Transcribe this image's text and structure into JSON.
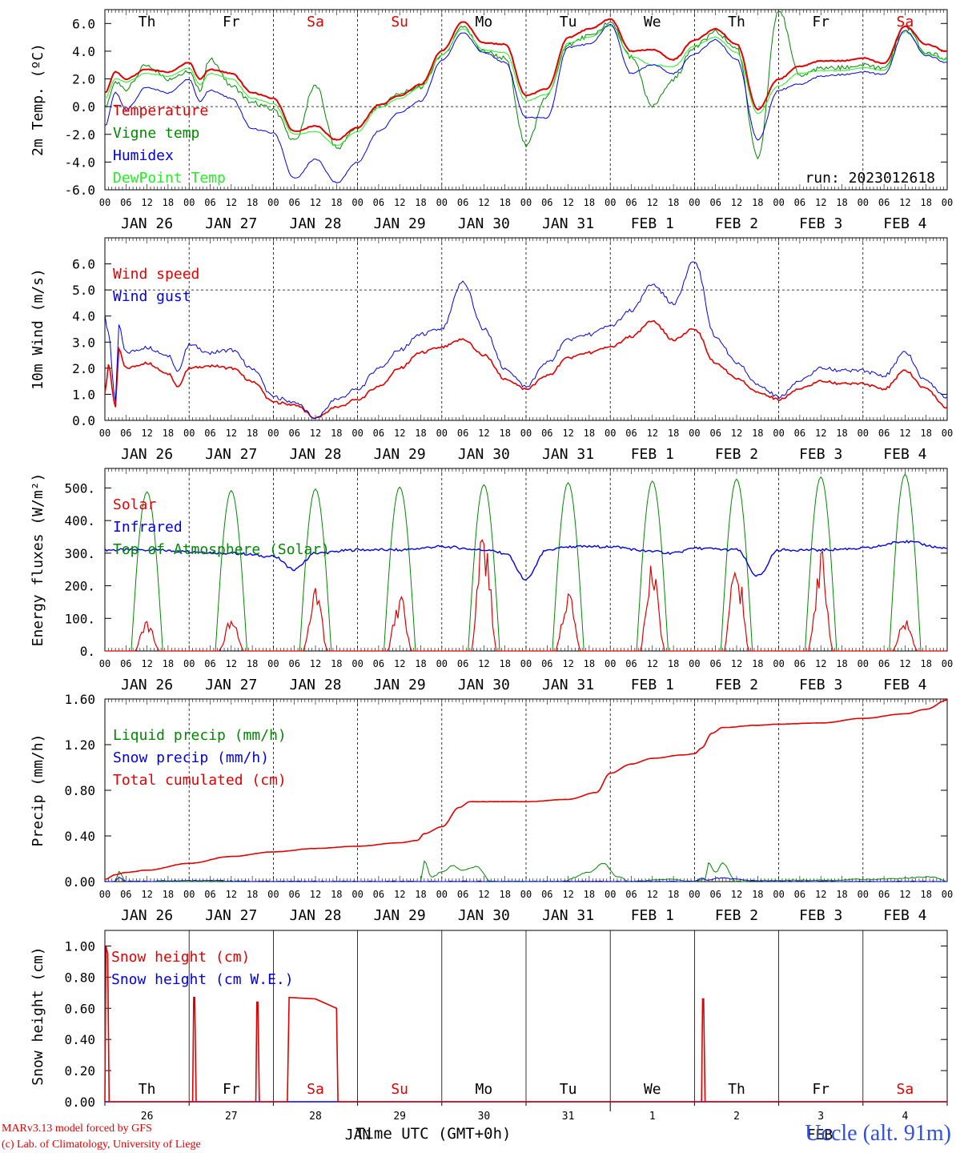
{
  "colors": {
    "red": "#e00000",
    "green": "#008800",
    "blue": "#0000e0",
    "lime": "#22ee22",
    "station": "#3050e0",
    "weekend": "#e00000"
  },
  "weekdays": [
    {
      "label": "Th",
      "weekend": false
    },
    {
      "label": "Fr",
      "weekend": false
    },
    {
      "label": "Sa",
      "weekend": true
    },
    {
      "label": "Su",
      "weekend": true
    },
    {
      "label": "Mo",
      "weekend": false
    },
    {
      "label": "Tu",
      "weekend": false
    },
    {
      "label": "We",
      "weekend": false
    },
    {
      "label": "Th",
      "weekend": false
    },
    {
      "label": "Fr",
      "weekend": false
    },
    {
      "label": "Sa",
      "weekend": true
    }
  ],
  "hour_ticks": [
    "00",
    "06",
    "12",
    "18"
  ],
  "dates": [
    "JAN 26",
    "JAN 27",
    "JAN 28",
    "JAN 29",
    "JAN 30",
    "JAN 31",
    "FEB  1",
    "FEB  2",
    "FEB  3",
    "FEB  4"
  ],
  "bottom_days": [
    "26",
    "27",
    "28",
    "29",
    "30",
    "31",
    "1",
    "2",
    "3",
    "4"
  ],
  "bottom_months": [
    "JAN",
    "FEB"
  ],
  "run_label": "run: 2023012618",
  "x_title": "Time UTC (GMT+0h)",
  "credits": [
    "MARv3.13 model forced by GFS",
    "(c) Lab. of Climatology, University of Liege"
  ],
  "station": "Uccle (alt. 91m)",
  "chart_data": [
    {
      "type": "line",
      "ylabel": "2m Temp. (ºC)",
      "ylim": [
        -6.0,
        7.0
      ],
      "yticks": [
        "-6.0",
        "-4.0",
        "-2.0",
        "0.0",
        "2.0",
        "4.0",
        "6.0"
      ],
      "ref_lines": [
        0.0
      ],
      "x_unit": "hours since JAN 26 00 UTC",
      "series": [
        {
          "name": "Temperature",
          "color": "red",
          "x": [
            0,
            3,
            6,
            12,
            18,
            24,
            27,
            30,
            36,
            42,
            48,
            54,
            60,
            66,
            72,
            78,
            84,
            90,
            96,
            102,
            108,
            114,
            120,
            126,
            132,
            138,
            144,
            150,
            156,
            162,
            168,
            174,
            180,
            186,
            192,
            198,
            204,
            210,
            216,
            222,
            228,
            234,
            240
          ],
          "values": [
            1.0,
            2.5,
            2.0,
            2.7,
            2.5,
            3.2,
            2.0,
            2.7,
            2.4,
            1.0,
            0.6,
            -1.8,
            -1.4,
            -2.4,
            -1.5,
            0.1,
            0.8,
            1.6,
            4.0,
            6.1,
            4.6,
            4.5,
            0.8,
            1.3,
            5.0,
            5.6,
            6.3,
            4.0,
            4.1,
            3.4,
            4.8,
            5.6,
            4.5,
            -0.2,
            2.0,
            2.9,
            3.3,
            3.3,
            3.5,
            3.1,
            5.8,
            4.5,
            4.0
          ]
        },
        {
          "name": "Vigne temp",
          "color": "green",
          "x": [
            0,
            3,
            6,
            12,
            18,
            24,
            27,
            30,
            36,
            42,
            48,
            54,
            60,
            66,
            72,
            78,
            84,
            90,
            96,
            102,
            108,
            114,
            120,
            126,
            132,
            138,
            144,
            150,
            156,
            162,
            168,
            174,
            180,
            186,
            192,
            198,
            204,
            210,
            216,
            222,
            228,
            234,
            240
          ],
          "values": [
            0.0,
            1.7,
            1.3,
            3.0,
            2.0,
            2.6,
            1.2,
            3.5,
            1.5,
            0.3,
            -0.2,
            -2.5,
            1.5,
            -3.0,
            -1.5,
            0.0,
            1.0,
            1.4,
            3.6,
            5.7,
            4.0,
            3.5,
            -2.8,
            0.8,
            4.5,
            5.1,
            6.0,
            3.6,
            0.0,
            2.0,
            4.3,
            5.4,
            4.2,
            -3.7,
            7.0,
            2.2,
            2.8,
            2.8,
            3.0,
            2.7,
            5.8,
            3.9,
            3.5
          ]
        },
        {
          "name": "Humidex",
          "color": "blue",
          "x": [
            0,
            3,
            6,
            12,
            18,
            24,
            27,
            30,
            36,
            42,
            48,
            54,
            60,
            66,
            72,
            78,
            84,
            90,
            96,
            102,
            108,
            114,
            120,
            126,
            132,
            138,
            144,
            150,
            156,
            162,
            168,
            174,
            180,
            186,
            192,
            198,
            204,
            210,
            216,
            222,
            228,
            234,
            240
          ],
          "values": [
            -1.4,
            1.0,
            -0.2,
            1.4,
            1.0,
            2.0,
            0.4,
            1.2,
            0.6,
            -1.6,
            -1.9,
            -5.2,
            -3.8,
            -5.5,
            -4.0,
            -1.8,
            -0.4,
            0.4,
            3.3,
            5.3,
            3.9,
            3.2,
            -0.8,
            -0.8,
            4.3,
            4.5,
            5.9,
            2.4,
            3.0,
            2.4,
            3.8,
            4.8,
            3.4,
            -2.4,
            1.2,
            1.6,
            2.2,
            2.3,
            2.5,
            2.3,
            5.5,
            3.7,
            3.2
          ]
        },
        {
          "name": "DewPoint Temp",
          "color": "lime",
          "x": [
            0,
            3,
            6,
            12,
            18,
            24,
            27,
            30,
            36,
            42,
            48,
            54,
            60,
            66,
            72,
            78,
            84,
            90,
            96,
            102,
            108,
            114,
            120,
            126,
            132,
            138,
            144,
            150,
            156,
            162,
            168,
            174,
            180,
            186,
            192,
            198,
            204,
            210,
            216,
            222,
            228,
            234,
            240
          ],
          "values": [
            0.6,
            2.0,
            1.8,
            2.4,
            2.2,
            2.8,
            1.6,
            2.4,
            2.0,
            0.6,
            0.2,
            -2.0,
            -1.8,
            -2.8,
            -1.8,
            -0.1,
            0.6,
            1.4,
            3.7,
            5.6,
            4.1,
            3.9,
            0.4,
            0.9,
            4.6,
            5.0,
            5.8,
            3.6,
            3.0,
            2.9,
            4.4,
            5.0,
            3.9,
            -0.5,
            1.5,
            2.4,
            2.6,
            2.6,
            2.8,
            2.6,
            5.4,
            3.8,
            3.4
          ]
        }
      ]
    },
    {
      "type": "line",
      "ylabel": "10m Wind (m/s)",
      "ylim": [
        0.0,
        7.0
      ],
      "yticks": [
        "0.0",
        "1.0",
        "2.0",
        "3.0",
        "4.0",
        "5.0",
        "6.0"
      ],
      "ref_lines": [
        5.0
      ],
      "x_unit": "hours since JAN 26 00 UTC",
      "series": [
        {
          "name": "Wind speed",
          "color": "red",
          "x": [
            0,
            1,
            3,
            4,
            6,
            12,
            18,
            21,
            24,
            30,
            36,
            42,
            48,
            54,
            60,
            66,
            72,
            78,
            84,
            90,
            96,
            102,
            108,
            114,
            120,
            126,
            132,
            138,
            144,
            150,
            156,
            162,
            168,
            174,
            180,
            186,
            192,
            198,
            204,
            210,
            216,
            222,
            228,
            234,
            240
          ],
          "values": [
            1.0,
            2.1,
            0.5,
            2.7,
            2.0,
            2.2,
            1.8,
            1.3,
            2.0,
            2.1,
            2.0,
            1.5,
            0.7,
            0.6,
            0.1,
            0.5,
            0.8,
            1.3,
            2.0,
            2.6,
            2.8,
            3.1,
            2.5,
            1.6,
            1.2,
            1.7,
            2.4,
            2.6,
            2.8,
            3.2,
            3.8,
            3.1,
            3.5,
            2.2,
            1.6,
            1.1,
            0.8,
            1.2,
            1.5,
            1.4,
            1.4,
            1.2,
            1.9,
            1.2,
            0.5
          ]
        },
        {
          "name": "Wind gust",
          "color": "blue",
          "x": [
            0,
            1,
            3,
            4,
            6,
            12,
            18,
            21,
            24,
            30,
            36,
            42,
            48,
            54,
            60,
            66,
            72,
            78,
            84,
            90,
            96,
            102,
            108,
            114,
            120,
            126,
            132,
            138,
            144,
            150,
            156,
            162,
            168,
            174,
            180,
            186,
            192,
            198,
            204,
            210,
            216,
            222,
            228,
            234,
            240
          ],
          "values": [
            4.0,
            3.3,
            0.7,
            3.6,
            2.6,
            2.8,
            2.5,
            1.9,
            2.9,
            2.6,
            2.7,
            2.0,
            0.9,
            0.7,
            0.1,
            0.8,
            1.2,
            2.0,
            2.7,
            3.3,
            3.5,
            5.3,
            3.5,
            2.0,
            1.3,
            2.2,
            3.1,
            3.3,
            3.6,
            4.2,
            5.2,
            4.5,
            6.1,
            3.2,
            2.2,
            1.4,
            0.9,
            1.5,
            2.0,
            1.9,
            1.9,
            1.7,
            2.6,
            1.5,
            0.9
          ]
        }
      ]
    },
    {
      "type": "line",
      "ylabel": "Energy fluxes (W/m²)",
      "ylim": [
        0,
        560
      ],
      "yticks": [
        "0.",
        "100.",
        "200.",
        "300.",
        "400.",
        "500."
      ],
      "ref_lines": [],
      "x_unit": "hours since JAN 26 00 UTC",
      "series": [
        {
          "name": "Solar",
          "color": "red",
          "day_peaks": [
            70,
            80,
            150,
            140,
            310,
            160,
            220,
            240,
            250,
            85
          ]
        },
        {
          "name": "Infrared",
          "color": "blue",
          "x": [
            0,
            12,
            24,
            36,
            48,
            54,
            60,
            72,
            84,
            96,
            108,
            114,
            120,
            126,
            132,
            144,
            156,
            162,
            168,
            180,
            186,
            192,
            204,
            216,
            228,
            240
          ],
          "values": [
            310,
            310,
            305,
            300,
            290,
            250,
            300,
            310,
            310,
            320,
            310,
            300,
            220,
            310,
            320,
            320,
            305,
            300,
            315,
            310,
            230,
            310,
            310,
            315,
            335,
            315
          ]
        },
        {
          "name": "Top of Atmosphere (Solar)",
          "color": "green",
          "day_peaks": [
            488,
            492,
            497,
            503,
            510,
            516,
            521,
            527,
            534,
            542
          ]
        }
      ],
      "daylight_hours": [
        7.5,
        16.5
      ]
    },
    {
      "type": "line",
      "ylabel": "Precip (mm/h)",
      "ylim": [
        0.0,
        1.6
      ],
      "yticks": [
        "0.00",
        "0.40",
        "0.80",
        "1.20",
        "1.60"
      ],
      "ref_lines": [],
      "x_unit": "hours since JAN 26 00 UTC",
      "series": [
        {
          "name": "Liquid precip (mm/h)",
          "color": "green",
          "x": [
            0,
            3,
            4,
            6,
            24,
            48,
            72,
            90,
            91,
            93,
            96,
            99,
            102,
            106,
            110,
            120,
            130,
            138,
            142,
            146,
            150,
            160,
            168,
            171,
            172,
            174,
            176,
            180,
            190,
            200,
            220,
            236,
            240
          ],
          "values": [
            0.0,
            0.0,
            0.09,
            0.0,
            0.0,
            0.0,
            0.0,
            0.0,
            0.18,
            0.04,
            0.08,
            0.14,
            0.1,
            0.13,
            0.0,
            0.0,
            0.0,
            0.08,
            0.16,
            0.04,
            0.0,
            0.02,
            0.0,
            0.02,
            0.16,
            0.08,
            0.16,
            0.0,
            0.01,
            0.01,
            0.02,
            0.04,
            0.0
          ]
        },
        {
          "name": "Snow precip (mm/h)",
          "color": "blue",
          "x": [
            0,
            3,
            4,
            6,
            24,
            48,
            72,
            96,
            120,
            144,
            168,
            170,
            172,
            174,
            190,
            240
          ],
          "values": [
            0.0,
            0.0,
            0.04,
            0.0,
            0.01,
            0.0,
            0.0,
            0.0,
            0.0,
            0.0,
            0.0,
            0.03,
            0.01,
            0.03,
            0.0,
            0.0
          ]
        },
        {
          "name": "Total cumulated (cm)",
          "color": "red",
          "x": [
            0,
            3,
            6,
            12,
            24,
            36,
            48,
            60,
            72,
            84,
            89,
            91,
            96,
            101,
            104,
            112,
            120,
            132,
            140,
            144,
            150,
            156,
            165,
            168,
            170,
            173,
            176,
            186,
            192,
            204,
            216,
            228,
            234,
            240
          ],
          "values": [
            0.02,
            0.06,
            0.08,
            0.1,
            0.16,
            0.22,
            0.26,
            0.29,
            0.31,
            0.34,
            0.36,
            0.42,
            0.48,
            0.65,
            0.7,
            0.7,
            0.7,
            0.72,
            0.78,
            0.95,
            1.03,
            1.08,
            1.11,
            1.12,
            1.17,
            1.3,
            1.35,
            1.37,
            1.38,
            1.39,
            1.43,
            1.47,
            1.51,
            1.59
          ]
        }
      ]
    },
    {
      "type": "line",
      "ylabel": "Snow height (cm)",
      "ylim": [
        0.0,
        1.1
      ],
      "yticks": [
        "0.00",
        "0.20",
        "0.40",
        "0.60",
        "0.80",
        "1.00"
      ],
      "ref_lines": [],
      "x_unit": "hours since JAN 26 00 UTC",
      "series": [
        {
          "name": "Snow height (cm)",
          "color": "red",
          "x": [
            0,
            0.3,
            0.8,
            1.2,
            25,
            25.3,
            25.6,
            26,
            43,
            43.3,
            43.6,
            44,
            52,
            52.5,
            60,
            66,
            66.4,
            170,
            170.3,
            170.6,
            171,
            240
          ],
          "values": [
            0.0,
            1.0,
            0.95,
            0.0,
            0.0,
            0.67,
            0.67,
            0.0,
            0.0,
            0.64,
            0.64,
            0.0,
            0.0,
            0.67,
            0.66,
            0.6,
            0.0,
            0.0,
            0.66,
            0.66,
            0.0,
            0.0
          ]
        },
        {
          "name": "Snow height (cm W.E.)",
          "color": "blue",
          "x": [
            0,
            240
          ],
          "values": [
            0.0,
            0.0
          ]
        }
      ]
    }
  ]
}
